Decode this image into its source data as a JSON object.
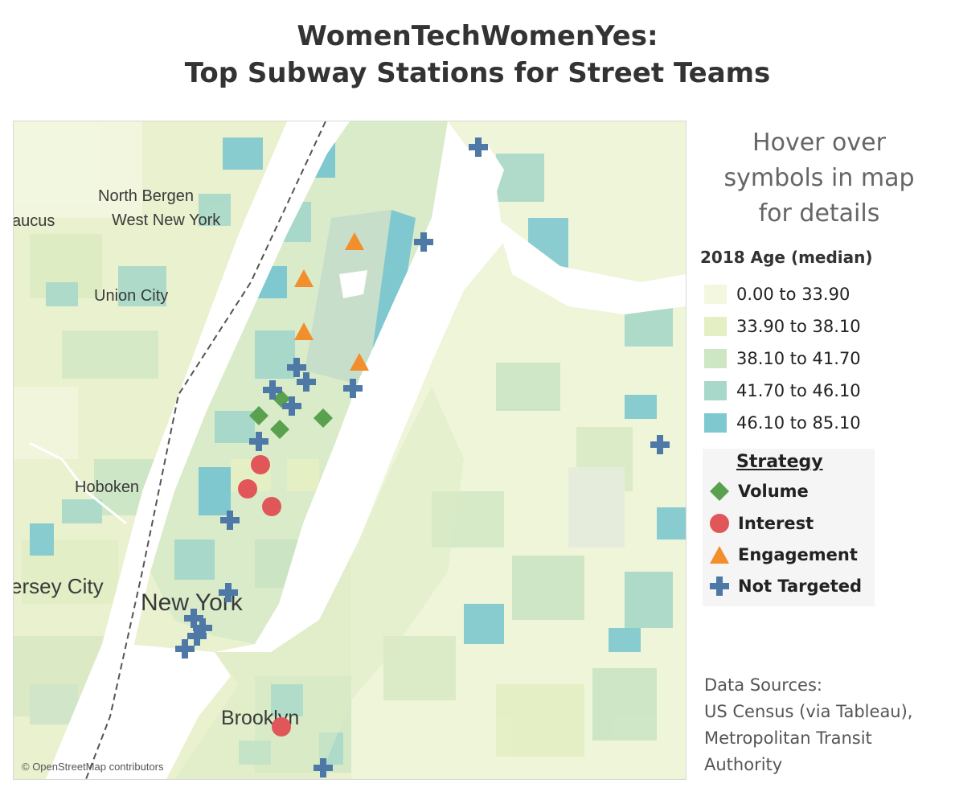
{
  "title_line1": "WomenTechWomenYes:",
  "title_line2": "Top Subway Stations for Street Teams",
  "hover_hint": [
    "Hover over",
    "symbols in map",
    "for details"
  ],
  "age_legend": {
    "title": "2018 Age (median)",
    "items": [
      {
        "label": "0.00 to 33.90",
        "color": "#f4f7df"
      },
      {
        "label": "33.90 to 38.10",
        "color": "#e4efc4"
      },
      {
        "label": "38.10 to 41.70",
        "color": "#cde6c3"
      },
      {
        "label": "41.70 to 46.10",
        "color": "#a8d8c9"
      },
      {
        "label": "46.10 to 85.10",
        "color": "#7fc8cf"
      }
    ]
  },
  "strategy_legend": {
    "title": "Strategy",
    "items": [
      {
        "label": "Volume",
        "shape": "diamond",
        "color": "#59a14f"
      },
      {
        "label": "Interest",
        "shape": "circle",
        "color": "#e15759"
      },
      {
        "label": "Engagement",
        "shape": "triangle",
        "color": "#f28e2b"
      },
      {
        "label": "Not Targeted",
        "shape": "cross",
        "color": "#4e79a7"
      }
    ]
  },
  "map": {
    "place_labels": {
      "north_bergen": "North Bergen",
      "west_new_york": "West New York",
      "secaucus": "aucus",
      "union_city": "Union City",
      "hoboken": "Hoboken",
      "jersey_city": "ersey City",
      "new_york": "New York",
      "brooklyn": "Brooklyn"
    },
    "credit": "© OpenStreetMap contributors"
  },
  "sources": [
    "Data Sources:",
    "US Census (via Tableau),",
    "Metropolitan Transit",
    "Authority"
  ]
}
